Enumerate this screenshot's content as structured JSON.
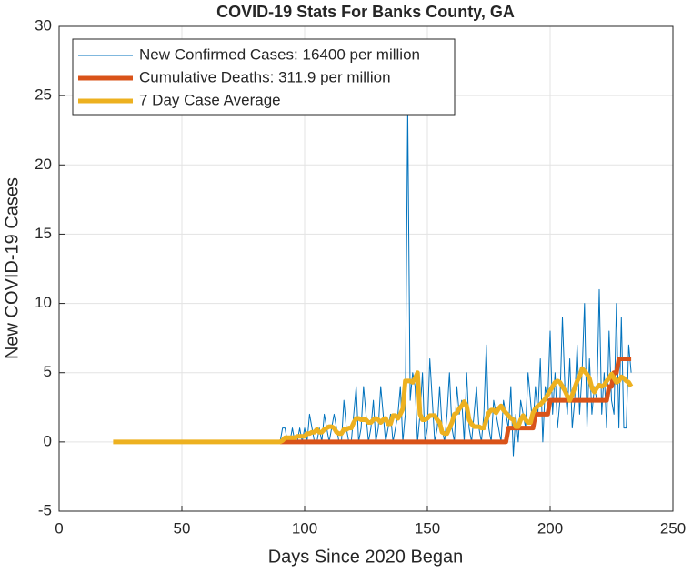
{
  "chart_data": {
    "type": "line",
    "title": "COVID-19 Stats For Banks County, GA",
    "xlabel": "Days Since 2020 Began",
    "ylabel": "New COVID-19 Cases",
    "xlim": [
      0,
      250
    ],
    "xticks": [
      0,
      50,
      100,
      150,
      200,
      250
    ],
    "ylim": [
      -5,
      30
    ],
    "yticks": [
      -5,
      0,
      5,
      10,
      15,
      20,
      25,
      30
    ],
    "grid": true,
    "legend": "upper left",
    "x": [
      22,
      23,
      24,
      25,
      26,
      27,
      28,
      29,
      30,
      31,
      32,
      33,
      34,
      35,
      36,
      37,
      38,
      39,
      40,
      41,
      42,
      43,
      44,
      45,
      46,
      47,
      48,
      49,
      50,
      51,
      52,
      53,
      54,
      55,
      56,
      57,
      58,
      59,
      60,
      61,
      62,
      63,
      64,
      65,
      66,
      67,
      68,
      69,
      70,
      71,
      72,
      73,
      74,
      75,
      76,
      77,
      78,
      79,
      80,
      81,
      82,
      83,
      84,
      85,
      86,
      87,
      88,
      89,
      90,
      91,
      92,
      93,
      94,
      95,
      96,
      97,
      98,
      99,
      100,
      101,
      102,
      103,
      104,
      105,
      106,
      107,
      108,
      109,
      110,
      111,
      112,
      113,
      114,
      115,
      116,
      117,
      118,
      119,
      120,
      121,
      122,
      123,
      124,
      125,
      126,
      127,
      128,
      129,
      130,
      131,
      132,
      133,
      134,
      135,
      136,
      137,
      138,
      139,
      140,
      141,
      142,
      143,
      144,
      145,
      146,
      147,
      148,
      149,
      150,
      151,
      152,
      153,
      154,
      155,
      156,
      157,
      158,
      159,
      160,
      161,
      162,
      163,
      164,
      165,
      166,
      167,
      168,
      169,
      170,
      171,
      172,
      173,
      174,
      175,
      176,
      177,
      178,
      179,
      180,
      181,
      182,
      183,
      184,
      185,
      186,
      187,
      188,
      189,
      190,
      191,
      192,
      193,
      194,
      195,
      196,
      197,
      198,
      199,
      200,
      201,
      202,
      203,
      204,
      205,
      206,
      207,
      208,
      209,
      210,
      211,
      212,
      213,
      214,
      215,
      216,
      217,
      218,
      219,
      220,
      221,
      222,
      223,
      224,
      225,
      226,
      227,
      228,
      229,
      230,
      231,
      232,
      233
    ],
    "series": [
      {
        "name": "New Confirmed Cases: 16400 per million",
        "color": "#0072BD",
        "values": [
          null,
          null,
          null,
          null,
          null,
          null,
          null,
          null,
          null,
          null,
          null,
          null,
          null,
          null,
          null,
          null,
          null,
          null,
          null,
          null,
          null,
          null,
          null,
          null,
          null,
          null,
          null,
          null,
          null,
          null,
          null,
          null,
          null,
          null,
          null,
          null,
          null,
          null,
          null,
          null,
          null,
          null,
          null,
          null,
          null,
          null,
          null,
          null,
          null,
          null,
          null,
          null,
          null,
          null,
          null,
          null,
          null,
          null,
          null,
          null,
          null,
          null,
          null,
          null,
          null,
          null,
          null,
          null,
          0,
          1,
          1,
          0,
          0,
          1,
          0,
          0,
          1,
          0,
          1,
          0,
          2,
          1,
          0,
          0,
          1,
          0,
          2,
          1,
          0,
          1,
          2,
          1,
          0,
          0,
          3,
          1,
          0,
          0,
          2,
          4,
          0,
          1,
          4,
          2,
          0,
          1,
          3,
          0,
          1,
          4,
          2,
          0,
          1,
          2,
          0,
          1,
          2,
          4,
          0,
          2,
          24,
          3,
          5,
          4,
          0,
          2,
          5,
          0,
          1,
          6,
          3,
          0,
          1,
          4,
          1,
          0,
          2,
          5,
          1,
          0,
          4,
          2,
          3,
          0,
          5,
          1,
          0,
          2,
          4,
          1,
          0,
          2,
          7,
          1,
          0,
          3,
          2,
          1,
          0,
          3,
          2,
          1,
          4,
          -1,
          2,
          0,
          3,
          2,
          1,
          5,
          3,
          1,
          4,
          2,
          6,
          0,
          4,
          3,
          8,
          2,
          5,
          1,
          3,
          9,
          4,
          2,
          6,
          1,
          3,
          7,
          2,
          5,
          10,
          1,
          6,
          2,
          4,
          3,
          11,
          2,
          5,
          1,
          8,
          3,
          2,
          10,
          1,
          9,
          1,
          1,
          7,
          5
        ]
      },
      {
        "name": "Cumulative Deaths: 311.9 per million",
        "color": "#D95319",
        "values": [
          null,
          null,
          null,
          null,
          null,
          null,
          null,
          null,
          null,
          null,
          null,
          null,
          null,
          null,
          null,
          null,
          null,
          null,
          null,
          null,
          null,
          null,
          null,
          null,
          null,
          null,
          null,
          null,
          null,
          null,
          null,
          null,
          null,
          null,
          null,
          null,
          null,
          null,
          null,
          null,
          null,
          null,
          null,
          null,
          null,
          null,
          null,
          null,
          null,
          null,
          null,
          null,
          null,
          null,
          null,
          null,
          null,
          null,
          null,
          null,
          null,
          null,
          null,
          null,
          null,
          null,
          null,
          null,
          0,
          0,
          0,
          0,
          0,
          0,
          0,
          0,
          0,
          0,
          0,
          0,
          0,
          0,
          0,
          0,
          0,
          0,
          0,
          0,
          0,
          0,
          0,
          0,
          0,
          0,
          0,
          0,
          0,
          0,
          0,
          0,
          0,
          0,
          0,
          0,
          0,
          0,
          0,
          0,
          0,
          0,
          0,
          0,
          0,
          0,
          0,
          0,
          0,
          0,
          0,
          0,
          0,
          0,
          0,
          0,
          0,
          0,
          0,
          0,
          0,
          0,
          0,
          0,
          0,
          0,
          0,
          0,
          0,
          0,
          0,
          0,
          0,
          0,
          0,
          0,
          0,
          0,
          0,
          0,
          0,
          0,
          0,
          0,
          0,
          0,
          0,
          0,
          0,
          0,
          0,
          0,
          0,
          1,
          1,
          1,
          1,
          1,
          1,
          1,
          1,
          1,
          1,
          1,
          2,
          2,
          2,
          2,
          2,
          2,
          3,
          3,
          3,
          3,
          3,
          3,
          3,
          3,
          3,
          3,
          3,
          3,
          3,
          3,
          3,
          3,
          3,
          3,
          3,
          3,
          3,
          3,
          3,
          3,
          4,
          4,
          5,
          5,
          6,
          6,
          6,
          6,
          6,
          6
        ]
      },
      {
        "name": "7 Day Case Average",
        "color": "#EDB120",
        "values": [
          0,
          0,
          0,
          0,
          0,
          0,
          0,
          0,
          0,
          0,
          0,
          0,
          0,
          0,
          0,
          0,
          0,
          0,
          0,
          0,
          0,
          0,
          0,
          0,
          0,
          0,
          0,
          0,
          0,
          0,
          0,
          0,
          0,
          0,
          0,
          0,
          0,
          0,
          0,
          0,
          0,
          0,
          0,
          0,
          0,
          0,
          0,
          0,
          0,
          0,
          0,
          0,
          0,
          0,
          0,
          0,
          0,
          0,
          0,
          0,
          0,
          0,
          0,
          0,
          0,
          0,
          0,
          0,
          0,
          0.1,
          0.3,
          0.3,
          0.3,
          0.3,
          0.3,
          0.4,
          0.4,
          0.4,
          0.4,
          0.6,
          0.6,
          0.7,
          0.7,
          0.9,
          0.7,
          0.7,
          0.9,
          1,
          1.1,
          1.1,
          1,
          0.7,
          0.6,
          0.6,
          0.9,
          0.9,
          1,
          1,
          1.4,
          1.7,
          1.7,
          1.6,
          1.6,
          1.6,
          1.4,
          1.4,
          1.6,
          1.7,
          1.6,
          1.4,
          1.6,
          1.7,
          1.3,
          1.3,
          1.9,
          1.9,
          1.7,
          2,
          2.4,
          4.4,
          4.4,
          4.4,
          4.3,
          4.6,
          5,
          2,
          1.6,
          1.6,
          1.7,
          1.9,
          1.9,
          1.9,
          1.6,
          1.4,
          0.7,
          0.6,
          0.6,
          1,
          1.4,
          2,
          2.1,
          2.4,
          2.6,
          2.9,
          2.6,
          1.6,
          1.3,
          1.1,
          1.1,
          1.1,
          1,
          1,
          1.6,
          2.1,
          2.3,
          2.3,
          2.1,
          2.4,
          2.6,
          2.3,
          2.1,
          1.9,
          1.7,
          1.6,
          1.1,
          1.1,
          1.6,
          1.9,
          1.6,
          1.4,
          1.4,
          2.1,
          2.4,
          2.6,
          2.7,
          2.9,
          3.1,
          3.4,
          3.7,
          4,
          4.3,
          4.4,
          4.3,
          4,
          3.7,
          3.3,
          3,
          3.4,
          3.9,
          4.4,
          4.7,
          5.3,
          5.1,
          4.9,
          4.6,
          3.9,
          3.6,
          3.9,
          4.1,
          4,
          4.1,
          4.4,
          4.6,
          4.9,
          4.6,
          4.3,
          4.4,
          4.7,
          4.6,
          4.4,
          4.3,
          4
        ]
      }
    ]
  }
}
